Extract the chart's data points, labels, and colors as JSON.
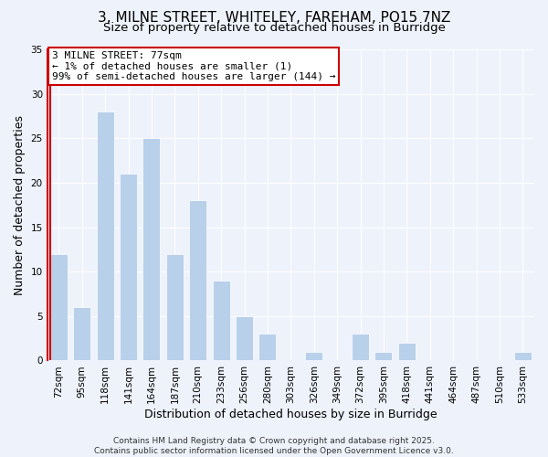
{
  "title": "3, MILNE STREET, WHITELEY, FAREHAM, PO15 7NZ",
  "subtitle": "Size of property relative to detached houses in Burridge",
  "xlabel": "Distribution of detached houses by size in Burridge",
  "ylabel": "Number of detached properties",
  "categories": [
    "72sqm",
    "95sqm",
    "118sqm",
    "141sqm",
    "164sqm",
    "187sqm",
    "210sqm",
    "233sqm",
    "256sqm",
    "280sqm",
    "303sqm",
    "326sqm",
    "349sqm",
    "372sqm",
    "395sqm",
    "418sqm",
    "441sqm",
    "464sqm",
    "487sqm",
    "510sqm",
    "533sqm"
  ],
  "values": [
    12,
    6,
    28,
    21,
    25,
    12,
    18,
    9,
    5,
    3,
    0,
    1,
    0,
    3,
    1,
    2,
    0,
    0,
    0,
    0,
    1
  ],
  "bar_color": "#b8d0ea",
  "marker_line_color": "#cc0000",
  "marker_bar_index": 0,
  "ylim": [
    0,
    35
  ],
  "yticks": [
    0,
    5,
    10,
    15,
    20,
    25,
    30,
    35
  ],
  "annotation_title": "3 MILNE STREET: 77sqm",
  "annotation_line1": "← 1% of detached houses are smaller (1)",
  "annotation_line2": "99% of semi-detached houses are larger (144) →",
  "annotation_box_color": "#ffffff",
  "annotation_box_edge_color": "#cc0000",
  "footer_line1": "Contains HM Land Registry data © Crown copyright and database right 2025.",
  "footer_line2": "Contains public sector information licensed under the Open Government Licence v3.0.",
  "background_color": "#eef2fb",
  "grid_color": "#ffffff",
  "title_fontsize": 11,
  "subtitle_fontsize": 9.5,
  "axis_label_fontsize": 9,
  "tick_fontsize": 7.5,
  "annotation_fontsize": 8,
  "footer_fontsize": 6.5
}
